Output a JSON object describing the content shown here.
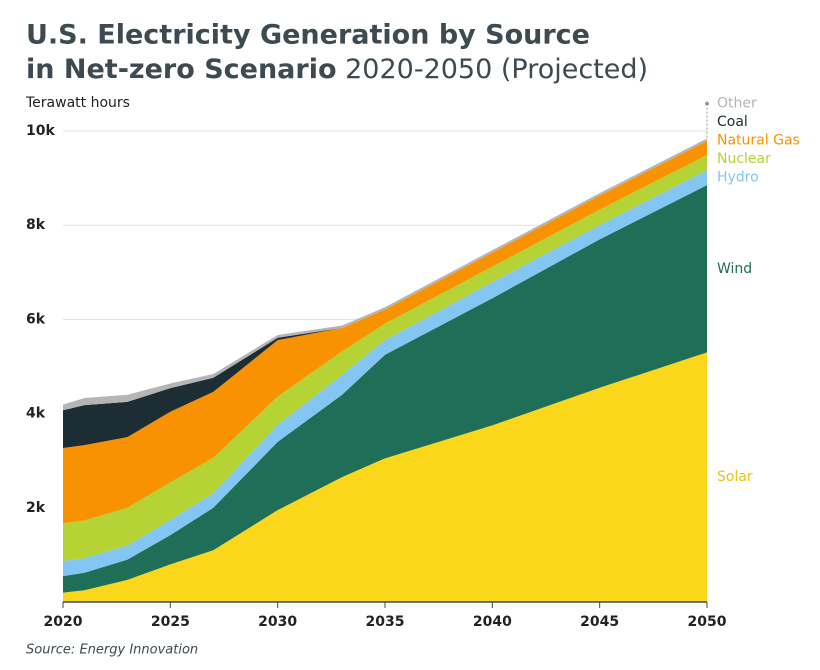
{
  "chart_data": {
    "type": "stacked-area",
    "title": [
      "U.S. Electricity Generation by Source",
      "in Net-zero Scenario"
    ],
    "subtitle": "2020-2050 (Projected)",
    "y_label": "Terawatt hours",
    "source": "Source: Energy Innovation",
    "x": [
      2020,
      2021,
      2023,
      2025,
      2027,
      2030,
      2033,
      2035,
      2040,
      2045,
      2050
    ],
    "series": [
      {
        "name": "Solar",
        "color": "#fbd71b",
        "values": [
          200,
          250,
          470,
          800,
          1100,
          1950,
          2650,
          3050,
          3750,
          4550,
          5300
        ]
      },
      {
        "name": "Wind",
        "color": "#1f6e57",
        "values": [
          350,
          370,
          430,
          620,
          900,
          1450,
          1750,
          2200,
          2700,
          3150,
          3550
        ]
      },
      {
        "name": "Hydro",
        "color": "#84c6f2",
        "values": [
          320,
          310,
          300,
          320,
          310,
          360,
          420,
          310,
          340,
          300,
          320
        ]
      },
      {
        "name": "Nuclear",
        "color": "#b5d334",
        "values": [
          800,
          800,
          800,
          800,
          750,
          600,
          500,
          350,
          330,
          330,
          320
        ]
      },
      {
        "name": "Natural Gas",
        "color": "#f99200",
        "values": [
          1600,
          1600,
          1500,
          1500,
          1400,
          1200,
          500,
          300,
          300,
          300,
          300
        ]
      },
      {
        "name": "Coal",
        "color": "#1c2e33",
        "values": [
          800,
          850,
          750,
          500,
          300,
          50,
          0,
          0,
          0,
          0,
          0
        ]
      },
      {
        "name": "Other",
        "color": "#b5b5b5",
        "values": [
          120,
          150,
          150,
          100,
          80,
          60,
          50,
          50,
          50,
          50,
          50
        ]
      }
    ],
    "xlim": [
      2020,
      2050
    ],
    "xticks": [
      2020,
      2025,
      2030,
      2035,
      2040,
      2045,
      2050
    ],
    "ylim": [
      0,
      10000
    ],
    "yticks": [
      {
        "value": 2000,
        "label": "2k"
      },
      {
        "value": 4000,
        "label": "4k"
      },
      {
        "value": 6000,
        "label": "6k"
      },
      {
        "value": 8000,
        "label": "8k"
      },
      {
        "value": 10000,
        "label": "10k"
      }
    ],
    "grid": true
  }
}
